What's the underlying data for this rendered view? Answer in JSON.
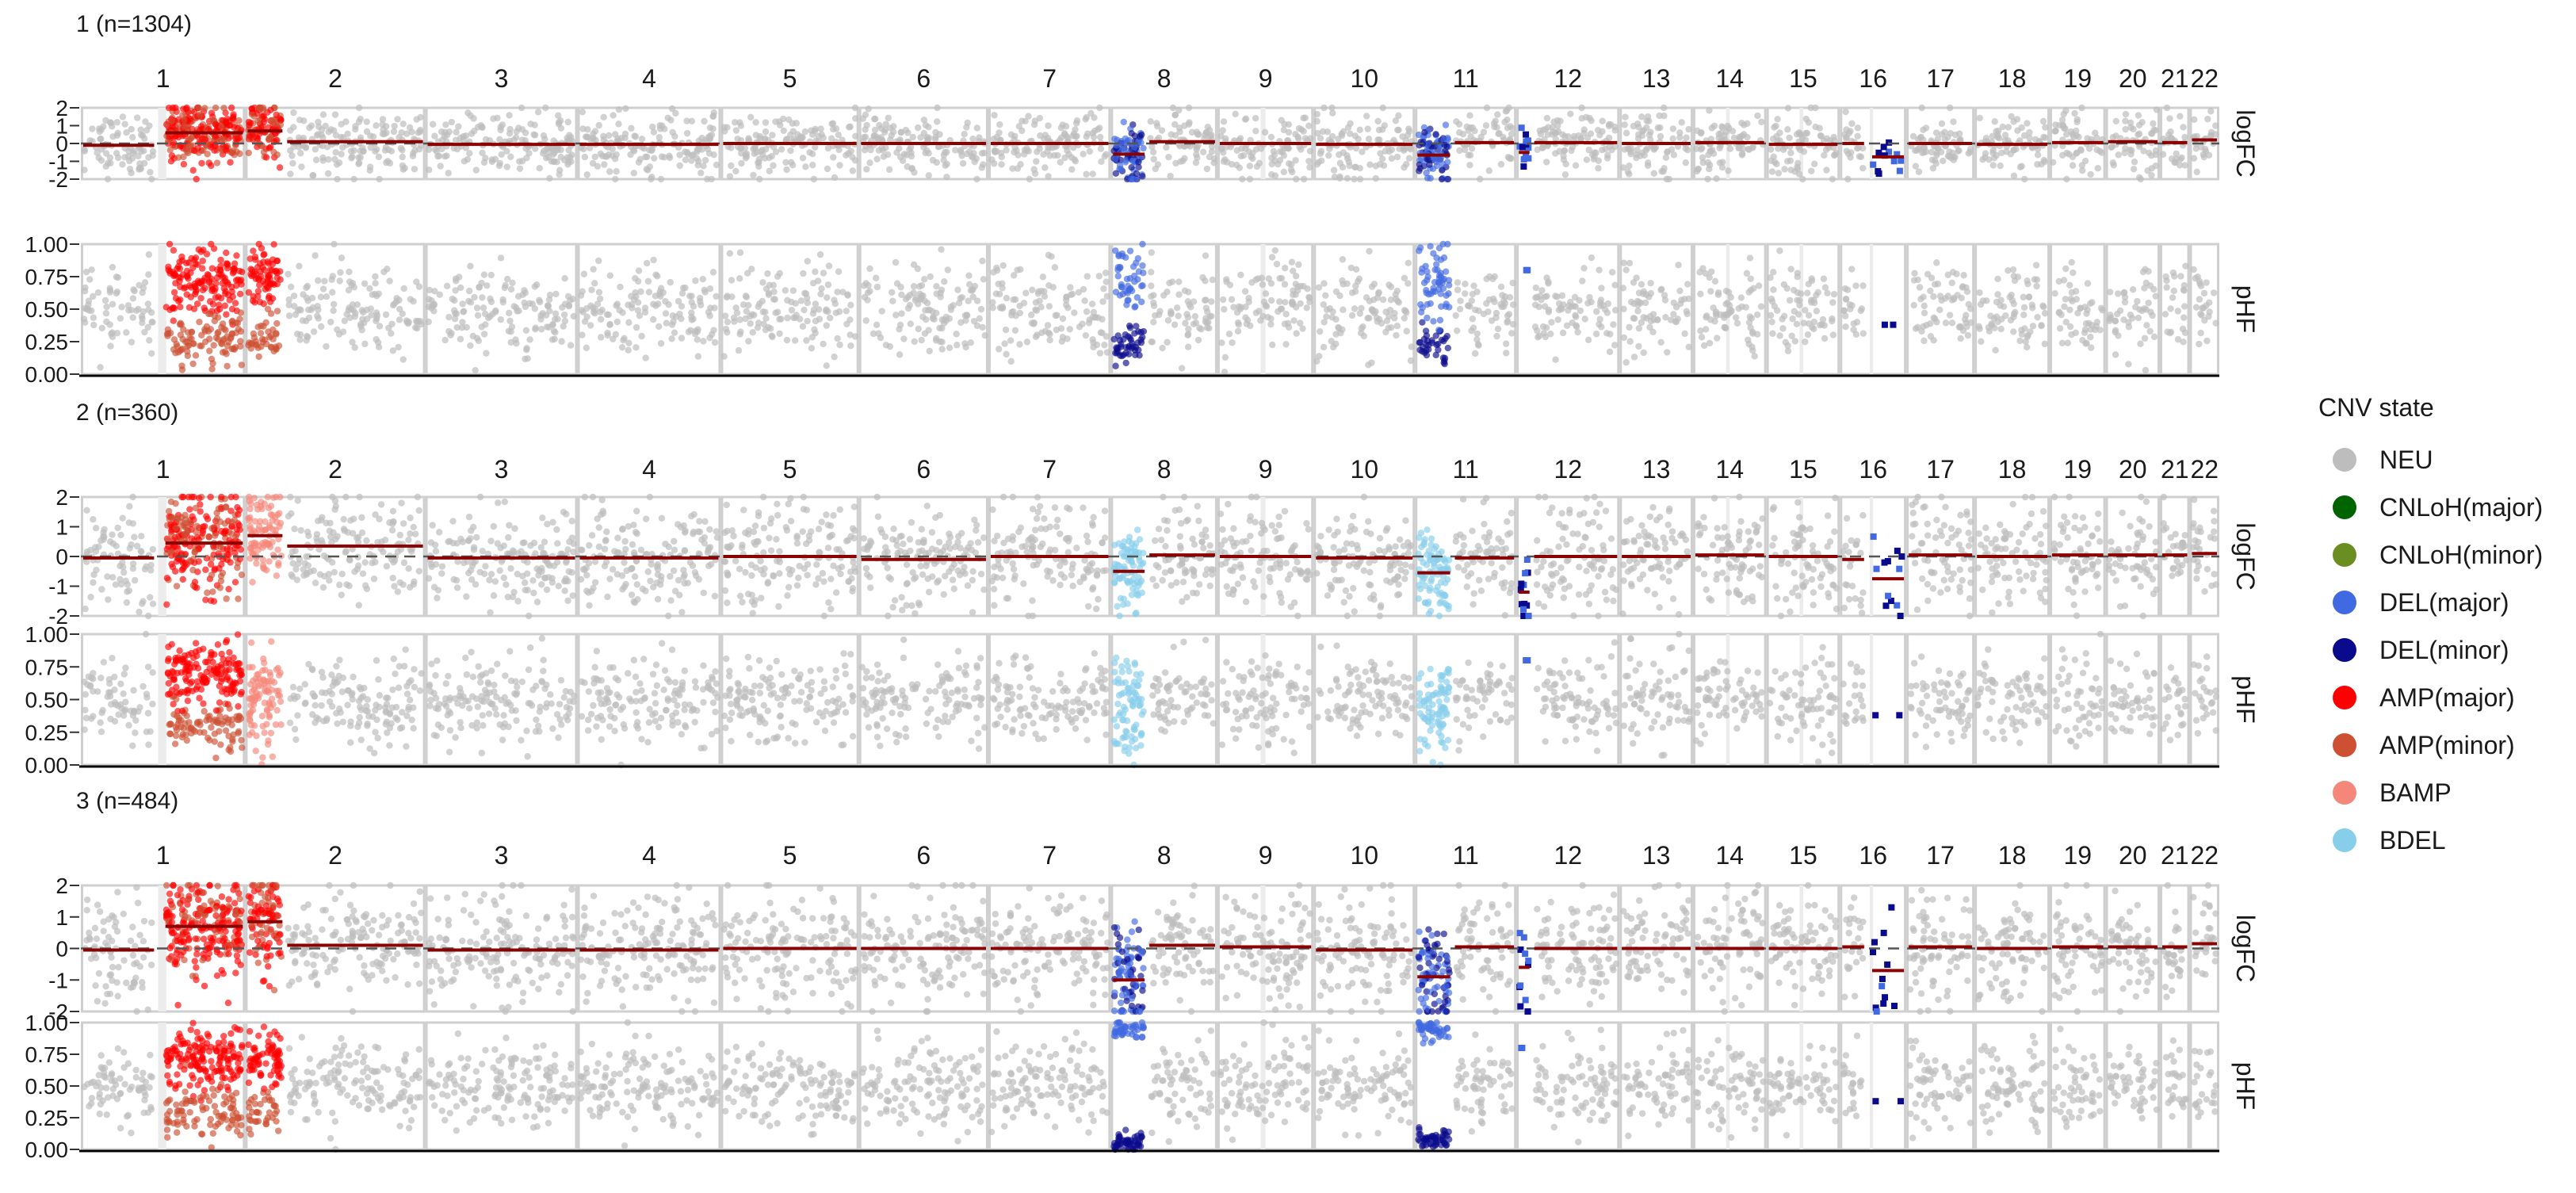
{
  "chart_data": {
    "type": "scatter",
    "chromosomes": [
      "1",
      "2",
      "3",
      "4",
      "5",
      "6",
      "7",
      "8",
      "9",
      "10",
      "11",
      "12",
      "13",
      "14",
      "15",
      "16",
      "17",
      "18",
      "19",
      "20",
      "21",
      "22"
    ],
    "chrom_relative_widths": [
      9.4,
      10.3,
      8.7,
      8.2,
      7.9,
      7.4,
      7.0,
      6.1,
      5.5,
      5.8,
      5.8,
      5.9,
      4.2,
      4.2,
      4.2,
      3.8,
      3.9,
      4.3,
      3.2,
      3.1,
      1.7,
      1.7
    ],
    "track_labels": [
      "logFC",
      "pHF"
    ],
    "logfc_ticks": [
      "2",
      "1",
      "0",
      "-1",
      "-2"
    ],
    "phf_ticks": [
      "1.00",
      "0.75",
      "0.50",
      "0.25",
      "0.00"
    ],
    "logfc_range": [
      -2,
      2
    ],
    "phf_range": [
      0,
      1
    ],
    "legend": {
      "title": "CNV state",
      "placement": "right",
      "entries": [
        {
          "label": "NEU",
          "color": "#bdbdbd"
        },
        {
          "label": "CNLoH(major)",
          "color": "#006400"
        },
        {
          "label": "CNLoH(minor)",
          "color": "#6b8e23"
        },
        {
          "label": "DEL(major)",
          "color": "#4169e1"
        },
        {
          "label": "DEL(minor)",
          "color": "#0a0a8c"
        },
        {
          "label": "AMP(major)",
          "color": "#ff0000"
        },
        {
          "label": "AMP(minor)",
          "color": "#cd5032"
        },
        {
          "label": "BAMP",
          "color": "#f4877a"
        },
        {
          "label": "BDEL",
          "color": "#87ceeb"
        }
      ]
    },
    "clones": [
      {
        "title": "1 (n=1304)",
        "segments": [
          {
            "chrom": "1",
            "start": 0,
            "end": 0.46,
            "state": "NEU",
            "logfc": -0.1
          },
          {
            "chrom": "1",
            "start": 0.5,
            "end": 1,
            "state": "AMP",
            "logfc": 0.6
          },
          {
            "chrom": "2",
            "start": 0,
            "end": 0.22,
            "state": "AMP",
            "logfc": 0.7
          },
          {
            "chrom": "2",
            "start": 0.22,
            "end": 1,
            "state": "NEU",
            "logfc": 0.1
          },
          {
            "chrom": "3",
            "start": 0,
            "end": 1,
            "state": "NEU",
            "logfc": -0.05
          },
          {
            "chrom": "4",
            "start": 0,
            "end": 1,
            "state": "NEU",
            "logfc": -0.05
          },
          {
            "chrom": "5",
            "start": 0,
            "end": 1,
            "state": "NEU",
            "logfc": 0
          },
          {
            "chrom": "6",
            "start": 0,
            "end": 1,
            "state": "NEU",
            "logfc": 0
          },
          {
            "chrom": "7",
            "start": 0,
            "end": 1,
            "state": "NEU",
            "logfc": 0
          },
          {
            "chrom": "8",
            "start": 0,
            "end": 0.34,
            "state": "DEL",
            "logfc": -0.6
          },
          {
            "chrom": "8",
            "start": 0.34,
            "end": 1,
            "state": "NEU",
            "logfc": 0.1
          },
          {
            "chrom": "9",
            "start": 0,
            "end": 1,
            "state": "NEU",
            "logfc": 0
          },
          {
            "chrom": "10",
            "start": 0,
            "end": 1,
            "state": "NEU",
            "logfc": -0.05
          },
          {
            "chrom": "11",
            "start": 0,
            "end": 0.37,
            "state": "DEL",
            "logfc": -0.65
          },
          {
            "chrom": "11",
            "start": 0.37,
            "end": 1,
            "state": "NEU",
            "logfc": 0.05
          },
          {
            "chrom": "12",
            "start": 0,
            "end": 0.15,
            "state": "DEL_SPARSE",
            "logfc": -0.5
          },
          {
            "chrom": "12",
            "start": 0.15,
            "end": 1,
            "state": "NEU",
            "logfc": 0.05
          },
          {
            "chrom": "13",
            "start": 0,
            "end": 1,
            "state": "NEU",
            "logfc": 0
          },
          {
            "chrom": "14",
            "start": 0,
            "end": 1,
            "state": "NEU",
            "logfc": 0.05
          },
          {
            "chrom": "15",
            "start": 0,
            "end": 1,
            "state": "NEU",
            "logfc": -0.05
          },
          {
            "chrom": "16",
            "start": 0,
            "end": 0.4,
            "state": "NEU",
            "logfc": 0
          },
          {
            "chrom": "16",
            "start": 0.45,
            "end": 1,
            "state": "DEL_SPARSE",
            "logfc": -0.75
          },
          {
            "chrom": "17",
            "start": 0,
            "end": 1,
            "state": "NEU",
            "logfc": 0
          },
          {
            "chrom": "18",
            "start": 0,
            "end": 1,
            "state": "NEU",
            "logfc": -0.05
          },
          {
            "chrom": "19",
            "start": 0,
            "end": 1,
            "state": "NEU",
            "logfc": 0.05
          },
          {
            "chrom": "20",
            "start": 0,
            "end": 1,
            "state": "NEU",
            "logfc": 0.1
          },
          {
            "chrom": "21",
            "start": 0,
            "end": 1,
            "state": "NEU",
            "logfc": 0.05
          },
          {
            "chrom": "22",
            "start": 0,
            "end": 1,
            "state": "NEU",
            "logfc": 0.2
          }
        ]
      },
      {
        "title": "2 (n=360)",
        "segments": [
          {
            "chrom": "1",
            "start": 0,
            "end": 0.46,
            "state": "NEU",
            "logfc": -0.05
          },
          {
            "chrom": "1",
            "start": 0.5,
            "end": 1,
            "state": "AMP",
            "logfc": 0.45
          },
          {
            "chrom": "2",
            "start": 0,
            "end": 0.22,
            "state": "BAMP",
            "logfc": 0.7
          },
          {
            "chrom": "2",
            "start": 0.22,
            "end": 1,
            "state": "NEU",
            "logfc": 0.35
          },
          {
            "chrom": "3",
            "start": 0,
            "end": 1,
            "state": "NEU",
            "logfc": -0.05
          },
          {
            "chrom": "4",
            "start": 0,
            "end": 1,
            "state": "NEU",
            "logfc": -0.05
          },
          {
            "chrom": "5",
            "start": 0,
            "end": 1,
            "state": "NEU",
            "logfc": 0
          },
          {
            "chrom": "6",
            "start": 0,
            "end": 1,
            "state": "NEU",
            "logfc": -0.1
          },
          {
            "chrom": "7",
            "start": 0,
            "end": 1,
            "state": "NEU",
            "logfc": 0
          },
          {
            "chrom": "8",
            "start": 0,
            "end": 0.34,
            "state": "BDEL",
            "logfc": -0.5
          },
          {
            "chrom": "8",
            "start": 0.34,
            "end": 1,
            "state": "NEU",
            "logfc": 0.05
          },
          {
            "chrom": "9",
            "start": 0,
            "end": 1,
            "state": "NEU",
            "logfc": 0
          },
          {
            "chrom": "10",
            "start": 0,
            "end": 1,
            "state": "NEU",
            "logfc": -0.05
          },
          {
            "chrom": "11",
            "start": 0,
            "end": 0.37,
            "state": "BDEL",
            "logfc": -0.55
          },
          {
            "chrom": "11",
            "start": 0.37,
            "end": 1,
            "state": "NEU",
            "logfc": -0.05
          },
          {
            "chrom": "12",
            "start": 0,
            "end": 0.15,
            "state": "DEL_SPARSE",
            "logfc": -1.2
          },
          {
            "chrom": "12",
            "start": 0.15,
            "end": 1,
            "state": "NEU",
            "logfc": 0
          },
          {
            "chrom": "13",
            "start": 0,
            "end": 1,
            "state": "NEU",
            "logfc": 0
          },
          {
            "chrom": "14",
            "start": 0,
            "end": 1,
            "state": "NEU",
            "logfc": 0.05
          },
          {
            "chrom": "15",
            "start": 0,
            "end": 1,
            "state": "NEU",
            "logfc": 0
          },
          {
            "chrom": "16",
            "start": 0,
            "end": 0.4,
            "state": "NEU",
            "logfc": -0.1
          },
          {
            "chrom": "16",
            "start": 0.45,
            "end": 1,
            "state": "DEL_SPARSE",
            "logfc": -0.75
          },
          {
            "chrom": "17",
            "start": 0,
            "end": 1,
            "state": "NEU",
            "logfc": 0.05
          },
          {
            "chrom": "18",
            "start": 0,
            "end": 1,
            "state": "NEU",
            "logfc": 0
          },
          {
            "chrom": "19",
            "start": 0,
            "end": 1,
            "state": "NEU",
            "logfc": 0.05
          },
          {
            "chrom": "20",
            "start": 0,
            "end": 1,
            "state": "NEU",
            "logfc": 0.05
          },
          {
            "chrom": "21",
            "start": 0,
            "end": 1,
            "state": "NEU",
            "logfc": 0.05
          },
          {
            "chrom": "22",
            "start": 0,
            "end": 1,
            "state": "NEU",
            "logfc": 0.1
          }
        ]
      },
      {
        "title": "3 (n=484)",
        "segments": [
          {
            "chrom": "1",
            "start": 0,
            "end": 0.46,
            "state": "NEU",
            "logfc": -0.05
          },
          {
            "chrom": "1",
            "start": 0.5,
            "end": 1,
            "state": "AMP",
            "logfc": 0.7
          },
          {
            "chrom": "2",
            "start": 0,
            "end": 0.22,
            "state": "AMP",
            "logfc": 0.85
          },
          {
            "chrom": "2",
            "start": 0.22,
            "end": 1,
            "state": "NEU",
            "logfc": 0.1
          },
          {
            "chrom": "3",
            "start": 0,
            "end": 1,
            "state": "NEU",
            "logfc": -0.05
          },
          {
            "chrom": "4",
            "start": 0,
            "end": 1,
            "state": "NEU",
            "logfc": -0.05
          },
          {
            "chrom": "5",
            "start": 0,
            "end": 1,
            "state": "NEU",
            "logfc": 0
          },
          {
            "chrom": "6",
            "start": 0,
            "end": 1,
            "state": "NEU",
            "logfc": 0
          },
          {
            "chrom": "7",
            "start": 0,
            "end": 1,
            "state": "NEU",
            "logfc": 0
          },
          {
            "chrom": "8",
            "start": 0,
            "end": 0.34,
            "state": "DEL",
            "logfc": -1.0
          },
          {
            "chrom": "8",
            "start": 0.34,
            "end": 1,
            "state": "NEU",
            "logfc": 0.1
          },
          {
            "chrom": "9",
            "start": 0,
            "end": 1,
            "state": "NEU",
            "logfc": 0.05
          },
          {
            "chrom": "10",
            "start": 0,
            "end": 1,
            "state": "NEU",
            "logfc": -0.05
          },
          {
            "chrom": "11",
            "start": 0,
            "end": 0.37,
            "state": "DEL",
            "logfc": -0.9
          },
          {
            "chrom": "11",
            "start": 0.37,
            "end": 1,
            "state": "NEU",
            "logfc": 0.05
          },
          {
            "chrom": "12",
            "start": 0,
            "end": 0.15,
            "state": "DEL_SPARSE",
            "logfc": -0.6
          },
          {
            "chrom": "12",
            "start": 0.15,
            "end": 1,
            "state": "NEU",
            "logfc": 0
          },
          {
            "chrom": "13",
            "start": 0,
            "end": 1,
            "state": "NEU",
            "logfc": 0
          },
          {
            "chrom": "14",
            "start": 0,
            "end": 1,
            "state": "NEU",
            "logfc": 0
          },
          {
            "chrom": "15",
            "start": 0,
            "end": 1,
            "state": "NEU",
            "logfc": 0
          },
          {
            "chrom": "16",
            "start": 0,
            "end": 0.4,
            "state": "NEU",
            "logfc": 0.05
          },
          {
            "chrom": "16",
            "start": 0.45,
            "end": 1,
            "state": "DEL_SPARSE",
            "logfc": -0.7
          },
          {
            "chrom": "17",
            "start": 0,
            "end": 1,
            "state": "NEU",
            "logfc": 0.05
          },
          {
            "chrom": "18",
            "start": 0,
            "end": 1,
            "state": "NEU",
            "logfc": 0
          },
          {
            "chrom": "19",
            "start": 0,
            "end": 1,
            "state": "NEU",
            "logfc": 0.05
          },
          {
            "chrom": "20",
            "start": 0,
            "end": 1,
            "state": "NEU",
            "logfc": 0.05
          },
          {
            "chrom": "21",
            "start": 0,
            "end": 1,
            "state": "NEU",
            "logfc": 0.05
          },
          {
            "chrom": "22",
            "start": 0,
            "end": 1,
            "state": "NEU",
            "logfc": 0.15
          }
        ]
      }
    ]
  }
}
